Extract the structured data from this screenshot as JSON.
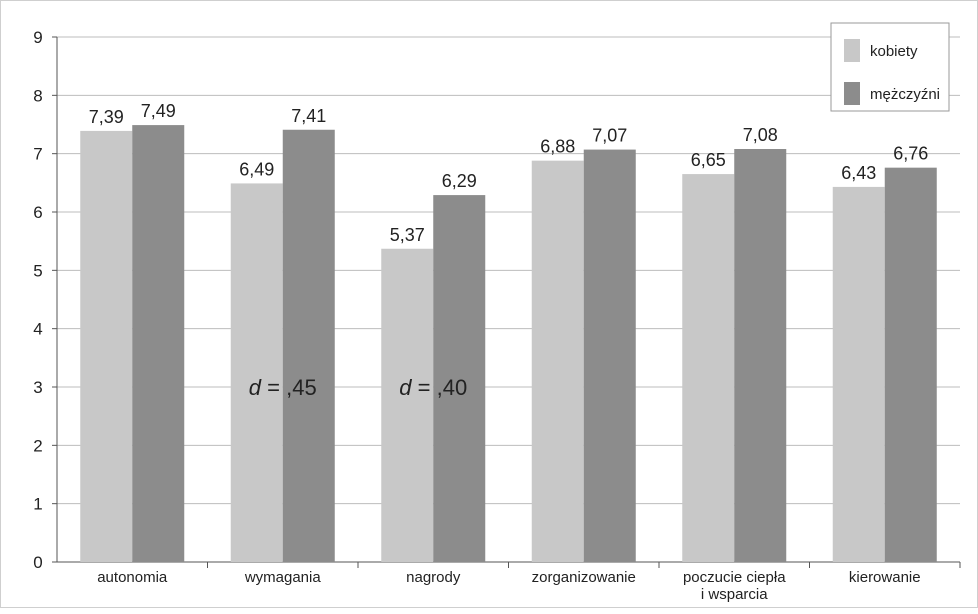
{
  "chart_data": {
    "type": "bar",
    "categories": [
      [
        "autonomia"
      ],
      [
        "wymagania"
      ],
      [
        "nagrody"
      ],
      [
        "zorganizowanie"
      ],
      [
        "poczucie ciepła",
        "i wsparcia"
      ],
      [
        "kierowanie"
      ]
    ],
    "series": [
      {
        "name": "kobiety",
        "color": "#c8c8c8",
        "values": [
          7.39,
          6.49,
          5.37,
          6.88,
          6.65,
          6.43
        ],
        "labels": [
          "7,39",
          "6,49",
          "5,37",
          "6,88",
          "6,65",
          "6,43"
        ]
      },
      {
        "name": "mężczyźni",
        "color": "#8c8c8c",
        "values": [
          7.49,
          7.41,
          6.29,
          7.07,
          7.08,
          6.76
        ],
        "labels": [
          "7,49",
          "7,41",
          "6,29",
          "7,07",
          "7,08",
          "6,76"
        ]
      }
    ],
    "annotations": [
      {
        "category_index": 1,
        "var": "d",
        "eq": " = ",
        "value": ",45",
        "y": 3.0
      },
      {
        "category_index": 2,
        "var": "d",
        "eq": " = ",
        "value": ",40",
        "y": 3.0
      }
    ],
    "ylim": [
      0,
      9
    ],
    "yticks": [
      0,
      1,
      2,
      3,
      4,
      5,
      6,
      7,
      8,
      9
    ],
    "grid": true,
    "legend_position": "top-right",
    "title": "",
    "xlabel": "",
    "ylabel": ""
  }
}
